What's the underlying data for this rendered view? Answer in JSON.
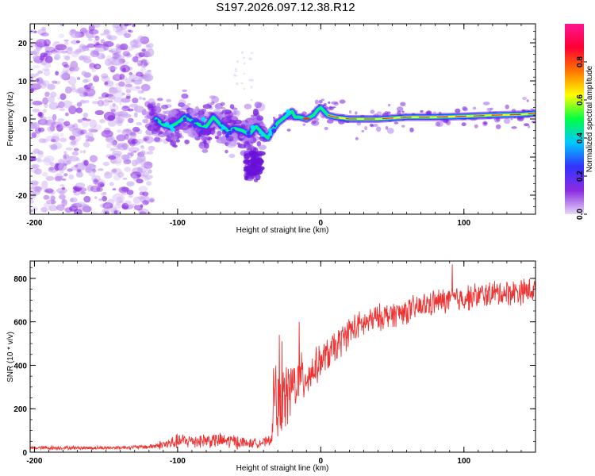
{
  "title": "S197.2026.097.12.38.R12",
  "colors": {
    "snr_line": "#ee3333",
    "ridge_core": "#e8382a",
    "colorbar": [
      "#e6d9f7",
      "#8a2be2",
      "#3333ff",
      "#00c8ff",
      "#00ff44",
      "#ffff00",
      "#ff7700",
      "#ff0033",
      "#ff1493"
    ]
  },
  "chart_data": [
    {
      "type": "heatmap",
      "name": "spectrogram",
      "xlabel": "Height of straight line (km)",
      "ylabel": "Frequency (Hz)",
      "xlim": [
        -203,
        150
      ],
      "ylim": [
        -25,
        25
      ],
      "xticks": [
        -200,
        -100,
        0,
        100
      ],
      "xtick_labels": [
        "-200",
        "-100",
        "0",
        "100"
      ],
      "yticks": [
        -20,
        -10,
        0,
        10,
        20
      ],
      "ytick_labels": [
        "-20",
        "-10",
        "0",
        "10",
        "20"
      ],
      "ridge": {
        "description": "Frequency track of the dominant spectral peak",
        "x": [
          -115,
          -110,
          -105,
          -100,
          -95,
          -90,
          -85,
          -80,
          -75,
          -70,
          -65,
          -60,
          -55,
          -50,
          -45,
          -40,
          -37,
          -35,
          -30,
          -25,
          -20,
          -18,
          -15,
          -10,
          -5,
          -2,
          0,
          5,
          10,
          20,
          40,
          60,
          80,
          100,
          120,
          140,
          150
        ],
        "y": [
          0,
          -1.5,
          -2,
          -1,
          0.5,
          -0.5,
          -1.5,
          -2,
          0.5,
          -1.5,
          -3,
          -2.5,
          -3,
          -4,
          -2,
          -4,
          -5,
          -3.5,
          -1,
          0.5,
          2,
          0.5,
          0.5,
          0,
          1,
          2.5,
          3,
          1,
          0.5,
          0,
          0,
          0.5,
          0.5,
          0.7,
          1,
          1.2,
          1.5
        ]
      },
      "colorbar": {
        "label": "Normalized spectral amplitude",
        "range": [
          0,
          1
        ],
        "ticks": [
          0.0,
          0.2,
          0.4,
          0.6,
          0.8
        ],
        "tick_labels": [
          "0.0",
          "0.2",
          "0.4",
          "0.6",
          "0.8"
        ]
      }
    },
    {
      "type": "line",
      "name": "snr",
      "xlabel": "Height of straight line (km)",
      "ylabel": "SNR (10 * v/v)",
      "xlim": [
        -203,
        150
      ],
      "ylim": [
        0,
        880
      ],
      "xticks": [
        -200,
        -100,
        0,
        100
      ],
      "xtick_labels": [
        "-200",
        "-100",
        "0",
        "100"
      ],
      "yticks": [
        0,
        200,
        400,
        600,
        800
      ],
      "ytick_labels": [
        "0",
        "200",
        "400",
        "600",
        "800"
      ],
      "series": [
        {
          "name": "SNR",
          "envelope_x": [
            -203,
            -150,
            -120,
            -105,
            -100,
            -80,
            -60,
            -50,
            -40,
            -35,
            -32,
            -30,
            -25,
            -20,
            -15,
            -10,
            -5,
            0,
            10,
            20,
            40,
            60,
            80,
            100,
            120,
            140,
            150
          ],
          "envelope_mean": [
            20,
            20,
            25,
            40,
            50,
            55,
            50,
            40,
            45,
            50,
            300,
            200,
            250,
            300,
            330,
            350,
            380,
            420,
            480,
            560,
            620,
            650,
            690,
            710,
            730,
            740,
            750
          ],
          "envelope_spread": [
            10,
            10,
            12,
            35,
            40,
            40,
            40,
            25,
            25,
            30,
            250,
            180,
            180,
            160,
            140,
            120,
            100,
            90,
            90,
            80,
            70,
            70,
            70,
            70,
            70,
            70,
            70
          ],
          "peaks": [
            {
              "x": -29,
              "y": 540
            },
            {
              "x": -27,
              "y": 510
            },
            {
              "x": -15,
              "y": 600
            },
            {
              "x": 92,
              "y": 865
            }
          ]
        }
      ]
    }
  ]
}
